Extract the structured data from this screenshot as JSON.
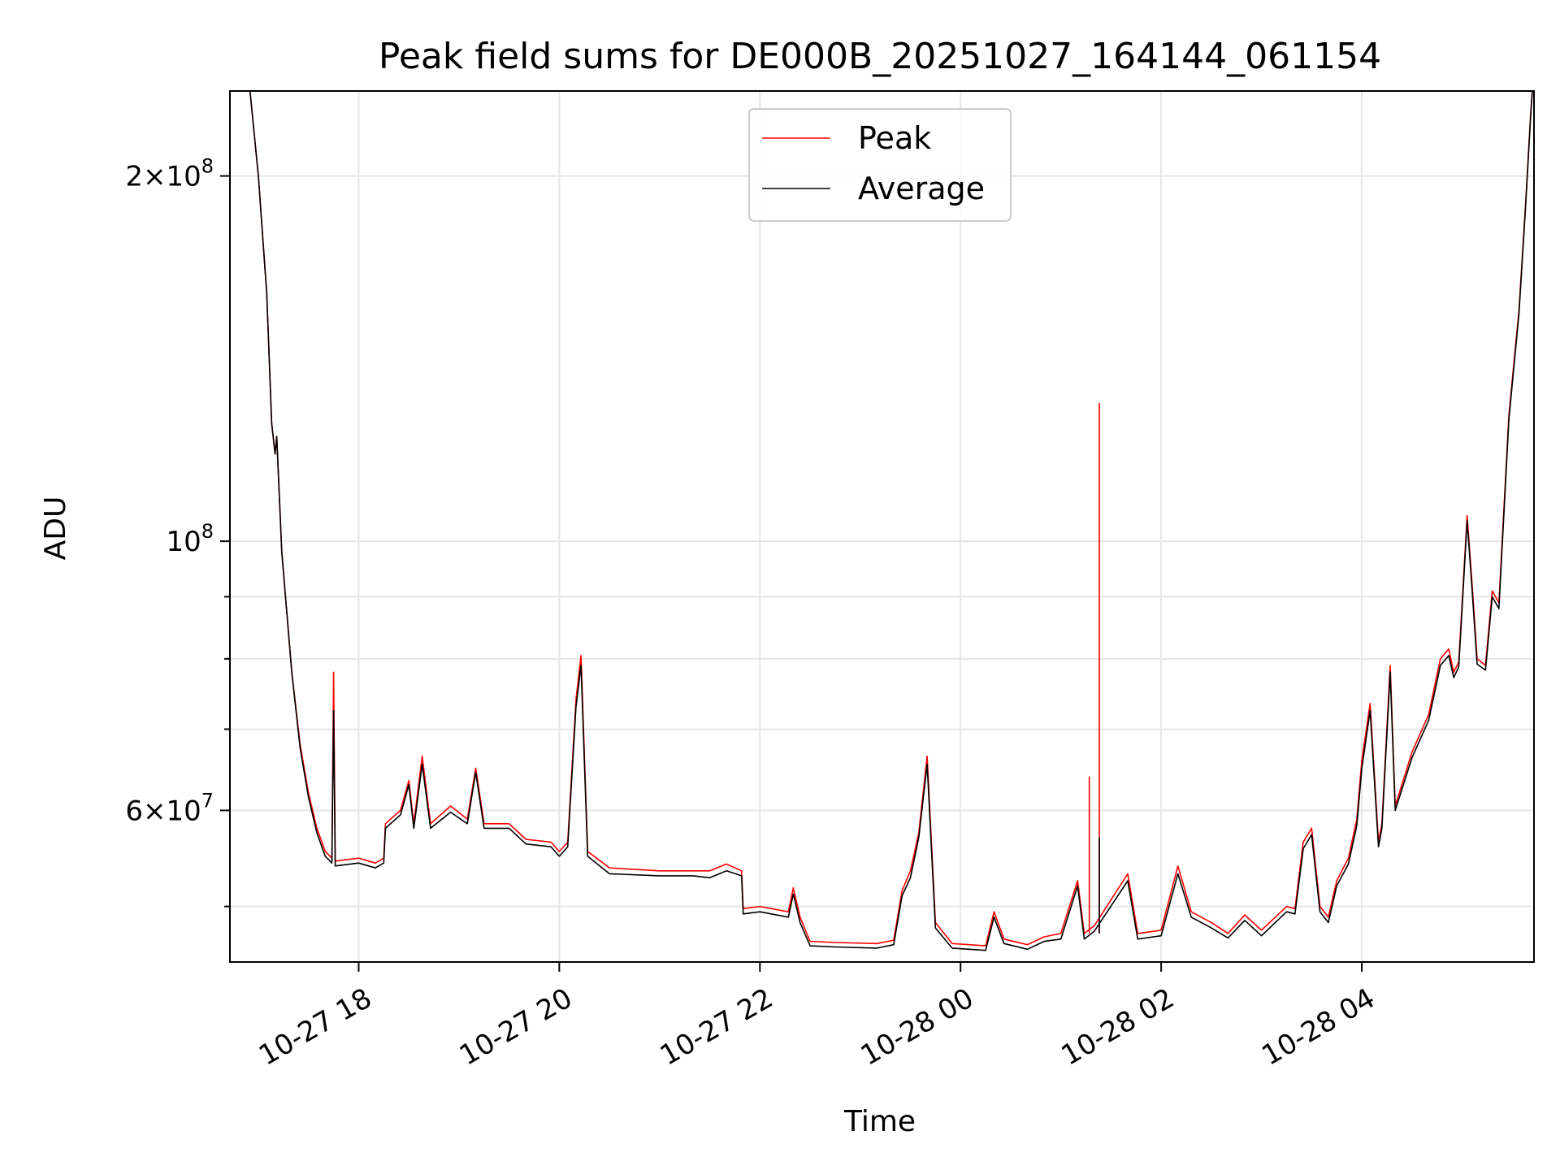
{
  "chart_data": {
    "type": "line",
    "title": "Peak field sums for DE000B_20251027_164144_061154",
    "xlabel": "Time",
    "ylabel": "ADU",
    "y_scale": "log",
    "ylim": [
      45000000,
      235000000
    ],
    "xlim": [
      "2025-10-27T16:43",
      "2025-10-28T05:43"
    ],
    "x_ticks": [
      {
        "t": "2025-10-27T18:00",
        "label": "10-27 18"
      },
      {
        "t": "2025-10-27T20:00",
        "label": "10-27 20"
      },
      {
        "t": "2025-10-27T22:00",
        "label": "10-27 22"
      },
      {
        "t": "2025-10-28T00:00",
        "label": "10-28 00"
      },
      {
        "t": "2025-10-28T02:00",
        "label": "10-28 02"
      },
      {
        "t": "2025-10-28T04:00",
        "label": "10-28 04"
      }
    ],
    "y_ticks": [
      {
        "value": 60000000,
        "mantissa": "6",
        "exponent": "7",
        "times": "×",
        "base": "10"
      },
      {
        "value": 100000000,
        "mantissa": "",
        "exponent": "8",
        "times": "",
        "base": "10"
      },
      {
        "value": 200000000,
        "mantissa": "2",
        "exponent": "8",
        "times": "×",
        "base": "10"
      }
    ],
    "y_minor_ticks": [
      50000000,
      70000000,
      80000000,
      90000000
    ],
    "grid": true,
    "legend": "upper center",
    "series": [
      {
        "name": "Peak",
        "color": "#ff0000",
        "points": [
          [
            "2025-10-27T16:55",
            235000000
          ],
          [
            "2025-10-27T17:00",
            200000000
          ],
          [
            "2025-10-27T17:05",
            160000000
          ],
          [
            "2025-10-27T17:08",
            125000000
          ],
          [
            "2025-10-27T17:10",
            118000000
          ],
          [
            "2025-10-27T17:11",
            122000000
          ],
          [
            "2025-10-27T17:14",
            98000000
          ],
          [
            "2025-10-27T17:20",
            78000000
          ],
          [
            "2025-10-27T17:25",
            68000000
          ],
          [
            "2025-10-27T17:30",
            62000000
          ],
          [
            "2025-10-27T17:35",
            58000000
          ],
          [
            "2025-10-27T17:40",
            55500000
          ],
          [
            "2025-10-27T17:44",
            54800000
          ],
          [
            "2025-10-27T17:45",
            78000000
          ],
          [
            "2025-10-27T17:46",
            54500000
          ],
          [
            "2025-10-27T18:00",
            54800000
          ],
          [
            "2025-10-27T18:10",
            54300000
          ],
          [
            "2025-10-27T18:15",
            54800000
          ],
          [
            "2025-10-27T18:16",
            58500000
          ],
          [
            "2025-10-27T18:25",
            60000000
          ],
          [
            "2025-10-27T18:30",
            63500000
          ],
          [
            "2025-10-27T18:33",
            58500000
          ],
          [
            "2025-10-27T18:38",
            66500000
          ],
          [
            "2025-10-27T18:43",
            58500000
          ],
          [
            "2025-10-27T18:55",
            60500000
          ],
          [
            "2025-10-27T19:05",
            59000000
          ],
          [
            "2025-10-27T19:10",
            65000000
          ],
          [
            "2025-10-27T19:15",
            58500000
          ],
          [
            "2025-10-27T19:30",
            58500000
          ],
          [
            "2025-10-27T19:40",
            56800000
          ],
          [
            "2025-10-27T19:55",
            56500000
          ],
          [
            "2025-10-27T20:00",
            55500000
          ],
          [
            "2025-10-27T20:05",
            56500000
          ],
          [
            "2025-10-27T20:10",
            74000000
          ],
          [
            "2025-10-27T20:13",
            80500000
          ],
          [
            "2025-10-27T20:17",
            55500000
          ],
          [
            "2025-10-27T20:30",
            53800000
          ],
          [
            "2025-10-27T21:00",
            53500000
          ],
          [
            "2025-10-27T21:20",
            53500000
          ],
          [
            "2025-10-27T21:30",
            53500000
          ],
          [
            "2025-10-27T21:40",
            54200000
          ],
          [
            "2025-10-27T21:49",
            53500000
          ],
          [
            "2025-10-27T21:50",
            49800000
          ],
          [
            "2025-10-27T22:00",
            50000000
          ],
          [
            "2025-10-27T22:17",
            49500000
          ],
          [
            "2025-10-27T22:20",
            51800000
          ],
          [
            "2025-10-27T22:24",
            49000000
          ],
          [
            "2025-10-27T22:30",
            46800000
          ],
          [
            "2025-10-27T22:45",
            46700000
          ],
          [
            "2025-10-27T23:10",
            46600000
          ],
          [
            "2025-10-27T23:20",
            46900000
          ],
          [
            "2025-10-27T23:25",
            51500000
          ],
          [
            "2025-10-27T23:30",
            53500000
          ],
          [
            "2025-10-27T23:35",
            57500000
          ],
          [
            "2025-10-27T23:40",
            66500000
          ],
          [
            "2025-10-27T23:45",
            48500000
          ],
          [
            "2025-10-27T23:55",
            46600000
          ],
          [
            "2025-10-28T00:15",
            46400000
          ],
          [
            "2025-10-28T00:20",
            49500000
          ],
          [
            "2025-10-28T00:26",
            47000000
          ],
          [
            "2025-10-28T00:40",
            46500000
          ],
          [
            "2025-10-28T00:50",
            47200000
          ],
          [
            "2025-10-28T01:00",
            47500000
          ],
          [
            "2025-10-28T01:10",
            52500000
          ],
          [
            "2025-10-28T01:14",
            47500000
          ],
          [
            "2025-10-28T01:20",
            48200000
          ],
          [
            "2025-10-28T01:40",
            53200000
          ],
          [
            "2025-10-28T01:46",
            47500000
          ],
          [
            "2025-10-28T02:00",
            47800000
          ],
          [
            "2025-10-28T02:10",
            54000000
          ],
          [
            "2025-10-28T02:18",
            49500000
          ],
          [
            "2025-10-28T02:30",
            48500000
          ],
          [
            "2025-10-28T02:40",
            47500000
          ],
          [
            "2025-10-28T02:50",
            49200000
          ],
          [
            "2025-10-28T03:00",
            47800000
          ],
          [
            "2025-10-28T03:15",
            50000000
          ],
          [
            "2025-10-28T03:20",
            49800000
          ],
          [
            "2025-10-28T03:25",
            56500000
          ],
          [
            "2025-10-28T03:30",
            58000000
          ],
          [
            "2025-10-28T03:35",
            50000000
          ],
          [
            "2025-10-28T03:40",
            49000000
          ],
          [
            "2025-10-28T03:45",
            52500000
          ],
          [
            "2025-10-28T03:52",
            54800000
          ],
          [
            "2025-10-28T03:57",
            59000000
          ],
          [
            "2025-10-28T04:00",
            66000000
          ],
          [
            "2025-10-28T04:05",
            73500000
          ],
          [
            "2025-10-28T04:10",
            56500000
          ],
          [
            "2025-10-28T04:12",
            58500000
          ],
          [
            "2025-10-28T04:17",
            79000000
          ],
          [
            "2025-10-28T04:20",
            60500000
          ],
          [
            "2025-10-28T04:30",
            67000000
          ],
          [
            "2025-10-28T04:40",
            72000000
          ],
          [
            "2025-10-28T04:47",
            80000000
          ],
          [
            "2025-10-28T04:52",
            81500000
          ],
          [
            "2025-10-28T04:55",
            78000000
          ],
          [
            "2025-10-28T04:58",
            79500000
          ],
          [
            "2025-10-28T05:03",
            105000000
          ],
          [
            "2025-10-28T05:06",
            92000000
          ],
          [
            "2025-10-28T05:09",
            80000000
          ],
          [
            "2025-10-28T05:14",
            79000000
          ],
          [
            "2025-10-28T05:18",
            91000000
          ],
          [
            "2025-10-28T05:22",
            89000000
          ],
          [
            "2025-10-28T05:28",
            127000000
          ],
          [
            "2025-10-28T05:34",
            155000000
          ],
          [
            "2025-10-28T05:38",
            190000000
          ],
          [
            "2025-10-28T05:41",
            225000000
          ],
          [
            "2025-10-28T05:42",
            235000000
          ]
        ],
        "spikes": [
          [
            "2025-10-28T01:17",
            64000000
          ],
          [
            "2025-10-28T01:23",
            130000000
          ]
        ]
      },
      {
        "name": "Average",
        "color": "#000000",
        "points": [
          [
            "2025-10-27T16:55",
            235000000
          ],
          [
            "2025-10-27T17:00",
            200000000
          ],
          [
            "2025-10-27T17:05",
            160000000
          ],
          [
            "2025-10-27T17:08",
            125000000
          ],
          [
            "2025-10-27T17:10",
            118000000
          ],
          [
            "2025-10-27T17:11",
            122000000
          ],
          [
            "2025-10-27T17:14",
            98000000
          ],
          [
            "2025-10-27T17:20",
            78000000
          ],
          [
            "2025-10-27T17:25",
            67500000
          ],
          [
            "2025-10-27T17:30",
            61500000
          ],
          [
            "2025-10-27T17:35",
            57500000
          ],
          [
            "2025-10-27T17:40",
            55000000
          ],
          [
            "2025-10-27T17:44",
            54300000
          ],
          [
            "2025-10-27T17:45",
            72500000
          ],
          [
            "2025-10-27T17:46",
            54000000
          ],
          [
            "2025-10-27T18:00",
            54300000
          ],
          [
            "2025-10-27T18:10",
            53800000
          ],
          [
            "2025-10-27T18:15",
            54300000
          ],
          [
            "2025-10-27T18:16",
            58000000
          ],
          [
            "2025-10-27T18:25",
            59500000
          ],
          [
            "2025-10-27T18:30",
            63000000
          ],
          [
            "2025-10-27T18:33",
            58000000
          ],
          [
            "2025-10-27T18:38",
            65500000
          ],
          [
            "2025-10-27T18:43",
            58000000
          ],
          [
            "2025-10-27T18:55",
            59800000
          ],
          [
            "2025-10-27T19:05",
            58500000
          ],
          [
            "2025-10-27T19:10",
            64500000
          ],
          [
            "2025-10-27T19:15",
            58000000
          ],
          [
            "2025-10-27T19:30",
            58000000
          ],
          [
            "2025-10-27T19:40",
            56300000
          ],
          [
            "2025-10-27T19:55",
            56000000
          ],
          [
            "2025-10-27T20:00",
            55000000
          ],
          [
            "2025-10-27T20:05",
            56000000
          ],
          [
            "2025-10-27T20:10",
            73000000
          ],
          [
            "2025-10-27T20:13",
            79000000
          ],
          [
            "2025-10-27T20:17",
            55000000
          ],
          [
            "2025-10-27T20:30",
            53200000
          ],
          [
            "2025-10-27T21:00",
            53000000
          ],
          [
            "2025-10-27T21:20",
            53000000
          ],
          [
            "2025-10-27T21:30",
            52800000
          ],
          [
            "2025-10-27T21:40",
            53500000
          ],
          [
            "2025-10-27T21:49",
            53000000
          ],
          [
            "2025-10-27T21:50",
            49300000
          ],
          [
            "2025-10-27T22:00",
            49500000
          ],
          [
            "2025-10-27T22:17",
            49000000
          ],
          [
            "2025-10-27T22:20",
            51200000
          ],
          [
            "2025-10-27T22:24",
            48500000
          ],
          [
            "2025-10-27T22:30",
            46400000
          ],
          [
            "2025-10-27T22:45",
            46300000
          ],
          [
            "2025-10-27T23:10",
            46200000
          ],
          [
            "2025-10-27T23:20",
            46500000
          ],
          [
            "2025-10-27T23:25",
            51000000
          ],
          [
            "2025-10-27T23:30",
            52800000
          ],
          [
            "2025-10-27T23:35",
            57000000
          ],
          [
            "2025-10-27T23:40",
            65500000
          ],
          [
            "2025-10-27T23:45",
            48000000
          ],
          [
            "2025-10-27T23:55",
            46200000
          ],
          [
            "2025-10-28T00:15",
            46000000
          ],
          [
            "2025-10-28T00:20",
            49000000
          ],
          [
            "2025-10-28T00:26",
            46600000
          ],
          [
            "2025-10-28T00:40",
            46100000
          ],
          [
            "2025-10-28T00:50",
            46800000
          ],
          [
            "2025-10-28T01:00",
            47000000
          ],
          [
            "2025-10-28T01:10",
            52000000
          ],
          [
            "2025-10-28T01:14",
            47000000
          ],
          [
            "2025-10-28T01:20",
            47700000
          ],
          [
            "2025-10-28T01:40",
            52500000
          ],
          [
            "2025-10-28T01:46",
            47000000
          ],
          [
            "2025-10-28T02:00",
            47300000
          ],
          [
            "2025-10-28T02:10",
            53200000
          ],
          [
            "2025-10-28T02:18",
            49000000
          ],
          [
            "2025-10-28T02:30",
            48000000
          ],
          [
            "2025-10-28T02:40",
            47100000
          ],
          [
            "2025-10-28T02:50",
            48700000
          ],
          [
            "2025-10-28T03:00",
            47300000
          ],
          [
            "2025-10-28T03:15",
            49500000
          ],
          [
            "2025-10-28T03:20",
            49300000
          ],
          [
            "2025-10-28T03:25",
            55800000
          ],
          [
            "2025-10-28T03:30",
            57300000
          ],
          [
            "2025-10-28T03:35",
            49500000
          ],
          [
            "2025-10-28T03:40",
            48500000
          ],
          [
            "2025-10-28T03:45",
            52000000
          ],
          [
            "2025-10-28T03:52",
            54200000
          ],
          [
            "2025-10-28T03:57",
            58300000
          ],
          [
            "2025-10-28T04:00",
            65000000
          ],
          [
            "2025-10-28T04:05",
            72500000
          ],
          [
            "2025-10-28T04:10",
            56000000
          ],
          [
            "2025-10-28T04:12",
            58000000
          ],
          [
            "2025-10-28T04:17",
            78000000
          ],
          [
            "2025-10-28T04:20",
            60000000
          ],
          [
            "2025-10-28T04:30",
            66300000
          ],
          [
            "2025-10-28T04:40",
            71200000
          ],
          [
            "2025-10-28T04:47",
            79000000
          ],
          [
            "2025-10-28T04:52",
            80500000
          ],
          [
            "2025-10-28T04:55",
            77200000
          ],
          [
            "2025-10-28T04:58",
            78800000
          ],
          [
            "2025-10-28T05:03",
            104000000
          ],
          [
            "2025-10-28T05:06",
            91000000
          ],
          [
            "2025-10-28T05:09",
            79200000
          ],
          [
            "2025-10-28T05:14",
            78300000
          ],
          [
            "2025-10-28T05:18",
            90000000
          ],
          [
            "2025-10-28T05:22",
            88000000
          ],
          [
            "2025-10-28T05:28",
            126000000
          ],
          [
            "2025-10-28T05:34",
            154000000
          ],
          [
            "2025-10-28T05:38",
            189000000
          ],
          [
            "2025-10-28T05:41",
            224000000
          ],
          [
            "2025-10-28T05:42",
            235000000
          ]
        ],
        "spikes": [
          [
            "2025-10-28T01:23",
            57000000
          ]
        ]
      }
    ]
  }
}
